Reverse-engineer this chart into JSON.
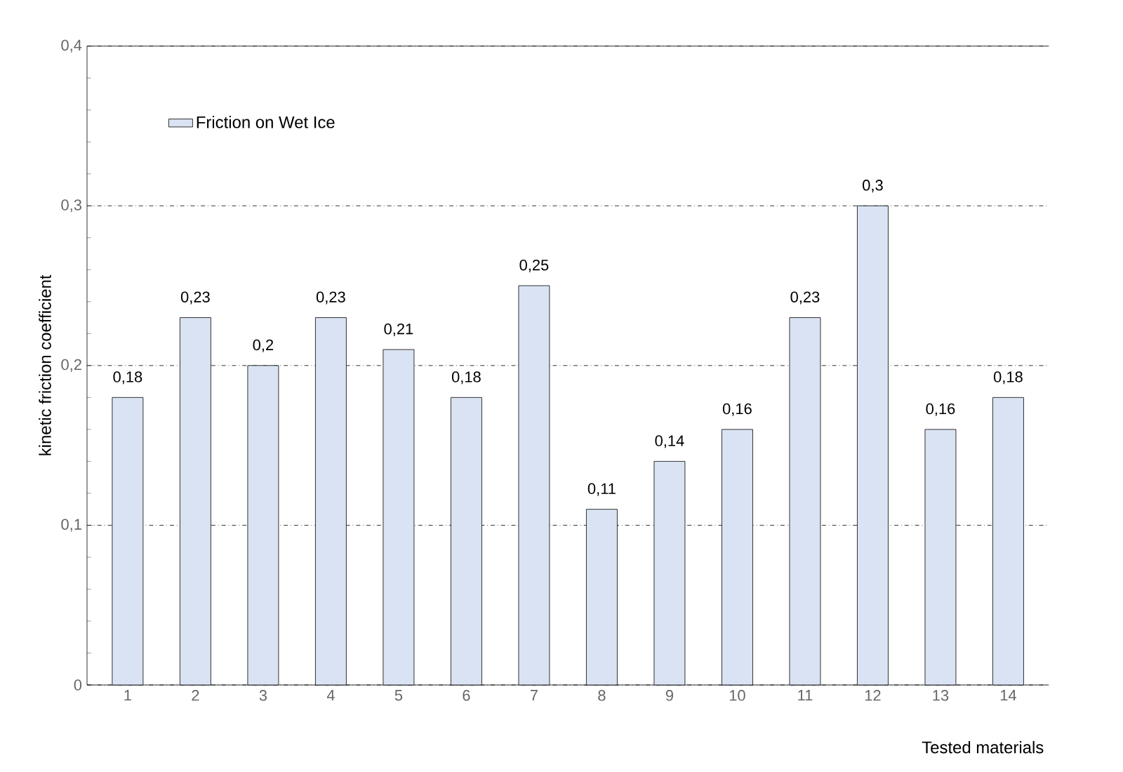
{
  "chart_data": {
    "type": "bar",
    "xlabel": "Tested materials",
    "ylabel": "kinetic friction coefficient",
    "categories": [
      "1",
      "2",
      "3",
      "4",
      "5",
      "6",
      "7",
      "8",
      "9",
      "10",
      "11",
      "12",
      "13",
      "14"
    ],
    "series": [
      {
        "name": "Friction on Wet Ice",
        "color": "#dae3f3",
        "values": [
          0.18,
          0.23,
          0.2,
          0.23,
          0.21,
          0.18,
          0.25,
          0.11,
          0.14,
          0.16,
          0.23,
          0.3,
          0.16,
          0.18
        ],
        "value_labels": [
          "0,18",
          "0,23",
          "0,2",
          "0,23",
          "0,21",
          "0,18",
          "0,25",
          "0,11",
          "0,14",
          "0,16",
          "0,23",
          "0,3",
          "0,16",
          "0,18"
        ]
      }
    ],
    "ylim": [
      0,
      0.4
    ],
    "yticks": [
      0,
      {
        "value": 0.1,
        "label": "0,1"
      },
      {
        "value": 0.2,
        "label": "0,2"
      },
      {
        "value": 0.3,
        "label": "0,3"
      },
      {
        "value": 0.4,
        "label": "0,4"
      }
    ],
    "grid": "y",
    "line_style": "dashdot",
    "legend": "top left"
  }
}
